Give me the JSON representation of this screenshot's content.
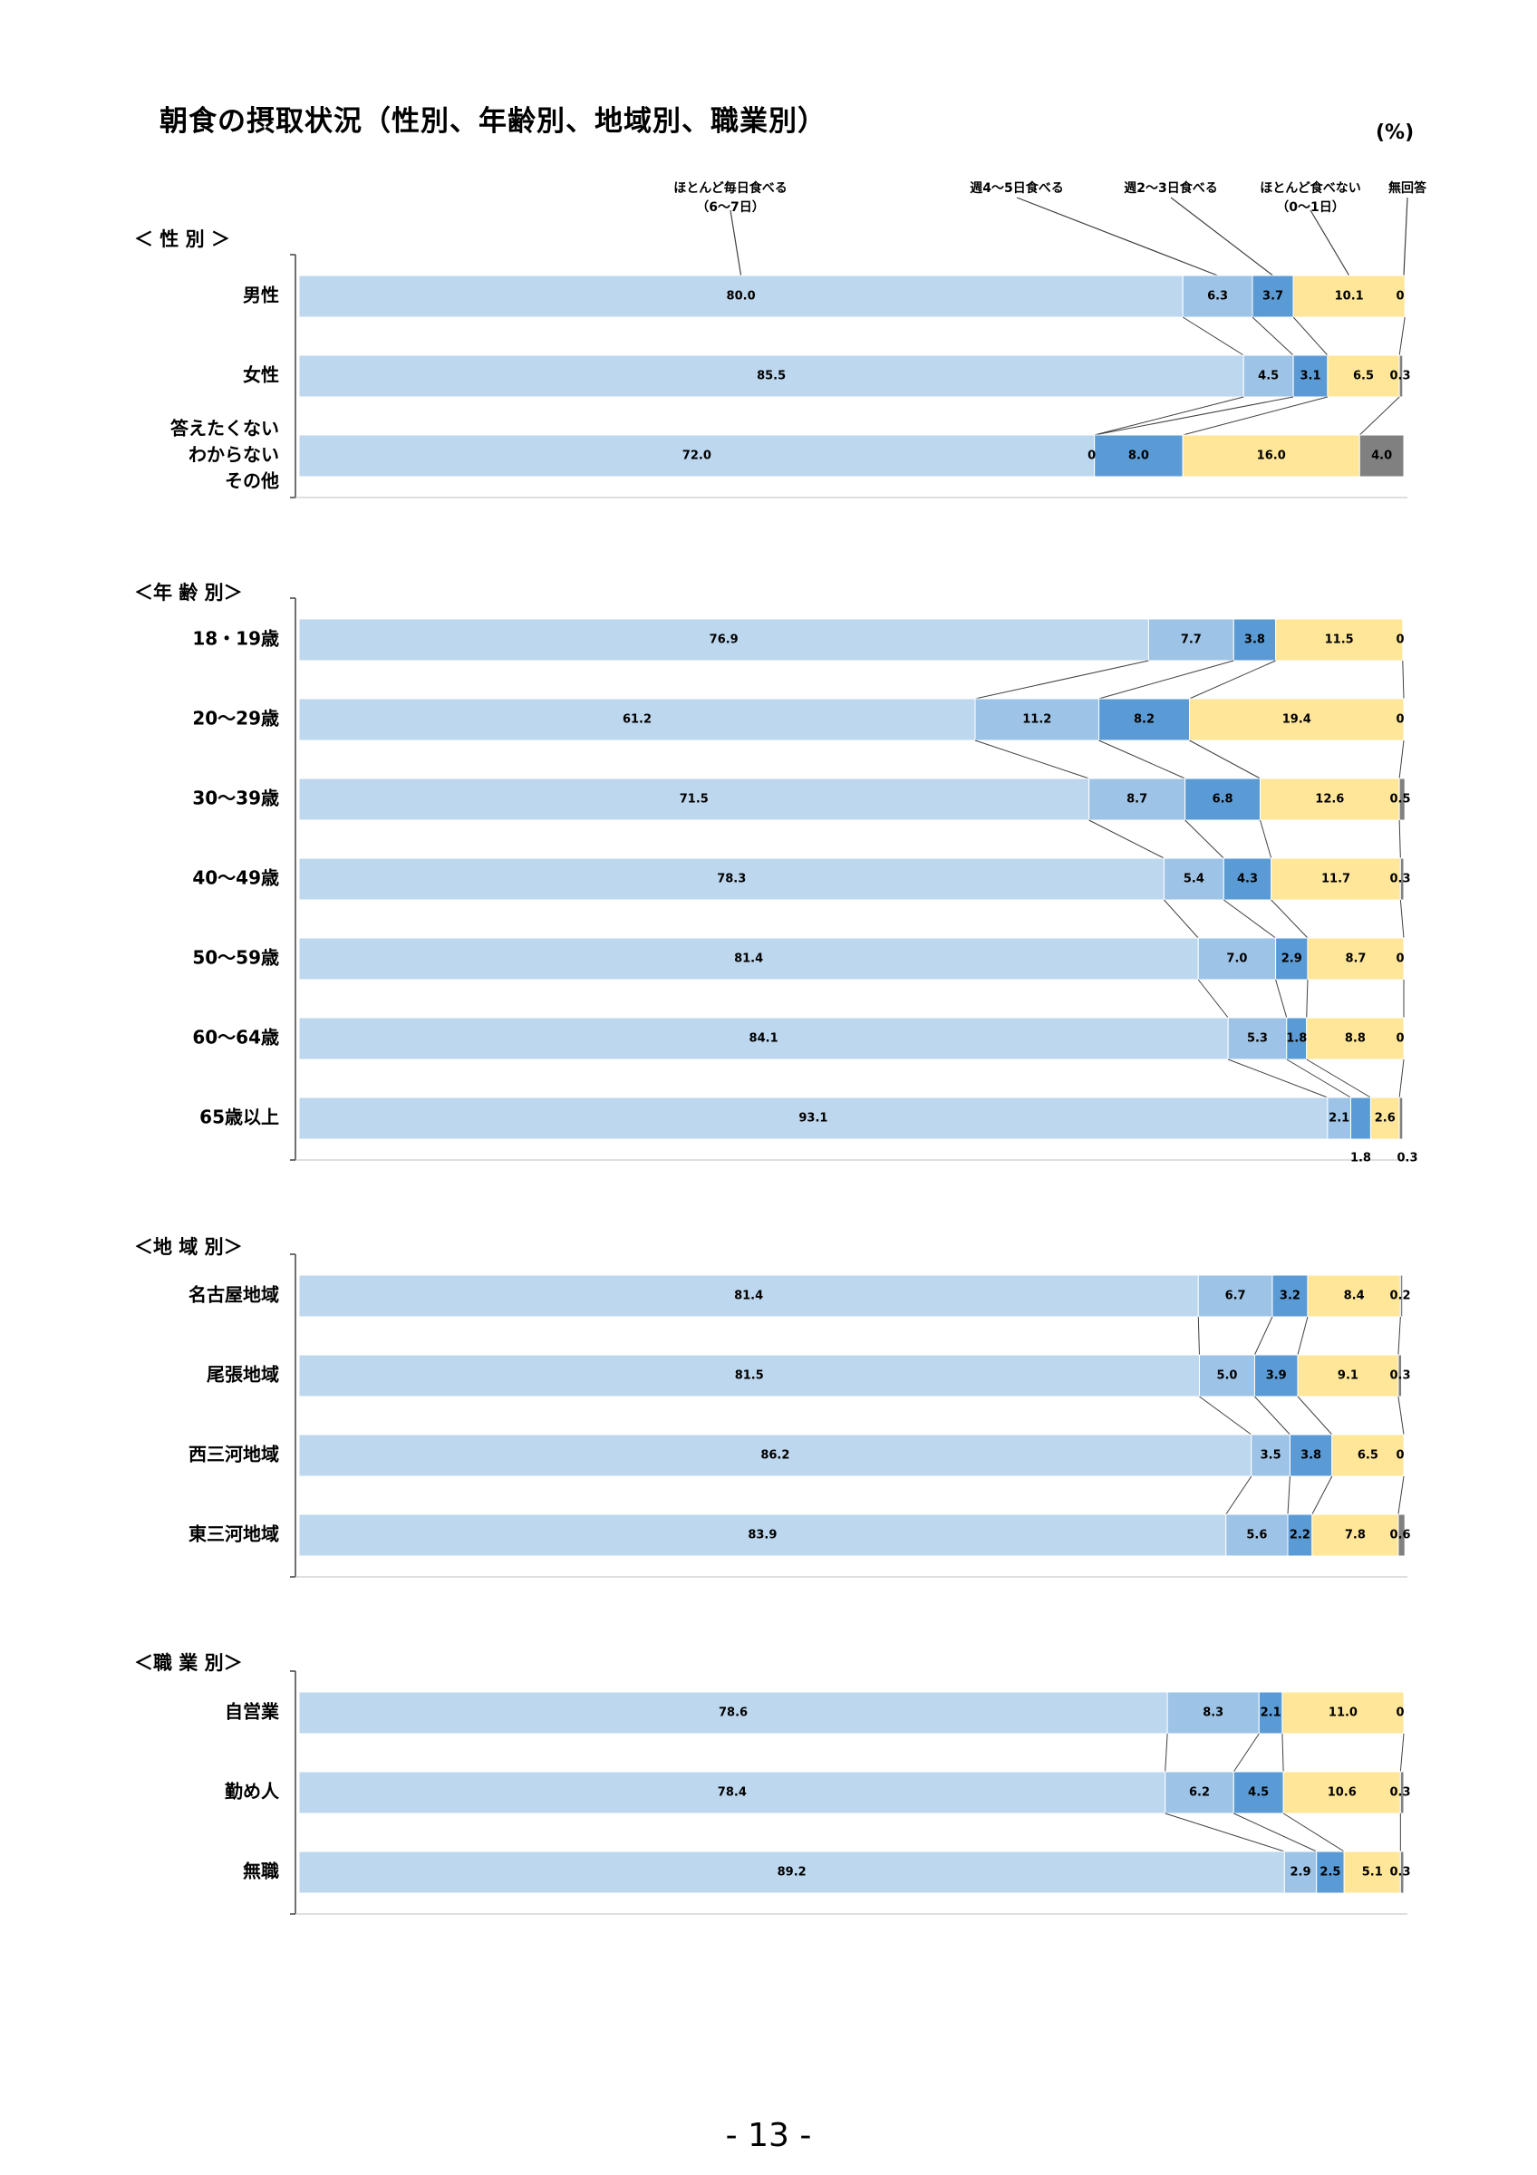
{
  "title": "朝食の摂取状況（性別、年齢別、地域別、職業別）",
  "unit": "(%)",
  "page_number": "- 13 -",
  "colors": {
    "every_day": "#BDD7EE",
    "days_4_5": "#9DC3E6",
    "days_2_3": "#5B9BD5",
    "rarely": "#FFE699",
    "no_answer": "#808080"
  },
  "chart_data": {
    "type": "bar",
    "orientation": "horizontal",
    "stacked": "100%",
    "xlim": [
      0,
      100
    ],
    "legend": [
      {
        "key": "every_day",
        "label_lines": [
          "ほとんど毎日食べる",
          "（6〜7日）"
        ]
      },
      {
        "key": "days_4_5",
        "label_lines": [
          "週4〜5日食べる"
        ]
      },
      {
        "key": "days_2_3",
        "label_lines": [
          "週2〜3日食べる"
        ]
      },
      {
        "key": "rarely",
        "label_lines": [
          "ほとんど食べない",
          "（0〜1日）"
        ]
      },
      {
        "key": "no_answer",
        "label_lines": [
          "無回答"
        ]
      }
    ],
    "groups": [
      {
        "title": "＜ 性 別 ＞",
        "rows": [
          {
            "label_lines": [
              "男性"
            ],
            "values": [
              80.0,
              6.3,
              3.7,
              10.1,
              0.0
            ],
            "labels": [
              "80.0",
              "6.3",
              "3.7",
              "10.1",
              "0"
            ]
          },
          {
            "label_lines": [
              "女性"
            ],
            "values": [
              85.5,
              4.5,
              3.1,
              6.5,
              0.3
            ],
            "labels": [
              "85.5",
              "4.5",
              "3.1",
              "6.5",
              "0.3"
            ]
          },
          {
            "label_lines": [
              "答えたくない",
              "わからない",
              "その他"
            ],
            "values": [
              72.0,
              0.0,
              8.0,
              16.0,
              4.0
            ],
            "labels": [
              "72.0",
              "0",
              "8.0",
              "16.0",
              "4.0"
            ]
          }
        ]
      },
      {
        "title": "＜年 齢 別＞",
        "rows": [
          {
            "label_lines": [
              "18・19歳"
            ],
            "values": [
              76.9,
              7.7,
              3.8,
              11.5,
              0.0
            ],
            "labels": [
              "76.9",
              "7.7",
              "3.8",
              "11.5",
              "0"
            ]
          },
          {
            "label_lines": [
              "20〜29歳"
            ],
            "values": [
              61.2,
              11.2,
              8.2,
              19.4,
              0.0
            ],
            "labels": [
              "61.2",
              "11.2",
              "8.2",
              "19.4",
              "0"
            ]
          },
          {
            "label_lines": [
              "30〜39歳"
            ],
            "values": [
              71.5,
              8.7,
              6.8,
              12.6,
              0.5
            ],
            "labels": [
              "71.5",
              "8.7",
              "6.8",
              "12.6",
              "0.5"
            ]
          },
          {
            "label_lines": [
              "40〜49歳"
            ],
            "values": [
              78.3,
              5.4,
              4.3,
              11.7,
              0.3
            ],
            "labels": [
              "78.3",
              "5.4",
              "4.3",
              "11.7",
              "0.3"
            ]
          },
          {
            "label_lines": [
              "50〜59歳"
            ],
            "values": [
              81.4,
              7.0,
              2.9,
              8.7,
              0.0
            ],
            "labels": [
              "81.4",
              "7.0",
              "2.9",
              "8.7",
              "0"
            ]
          },
          {
            "label_lines": [
              "60〜64歳"
            ],
            "values": [
              84.1,
              5.3,
              1.8,
              8.8,
              0.0
            ],
            "labels": [
              "84.1",
              "5.3",
              "1.8",
              "8.8",
              "0"
            ]
          },
          {
            "label_lines": [
              "65歳以上"
            ],
            "values": [
              93.1,
              2.1,
              1.8,
              2.6,
              0.3
            ],
            "labels": [
              "93.1",
              "2.1",
              "1.8",
              "2.6",
              "0.3"
            ],
            "outside": [
              2,
              4
            ]
          }
        ]
      },
      {
        "title": "＜地 域 別＞",
        "rows": [
          {
            "label_lines": [
              "名古屋地域"
            ],
            "values": [
              81.4,
              6.7,
              3.2,
              8.4,
              0.2
            ],
            "labels": [
              "81.4",
              "6.7",
              "3.2",
              "8.4",
              "0.2"
            ]
          },
          {
            "label_lines": [
              "尾張地域"
            ],
            "values": [
              81.5,
              5.0,
              3.9,
              9.1,
              0.3
            ],
            "labels": [
              "81.5",
              "5.0",
              "3.9",
              "9.1",
              "0.3"
            ]
          },
          {
            "label_lines": [
              "西三河地域"
            ],
            "values": [
              86.2,
              3.5,
              3.8,
              6.5,
              0.0
            ],
            "labels": [
              "86.2",
              "3.5",
              "3.8",
              "6.5",
              "0"
            ]
          },
          {
            "label_lines": [
              "東三河地域"
            ],
            "values": [
              83.9,
              5.6,
              2.2,
              7.8,
              0.6
            ],
            "labels": [
              "83.9",
              "5.6",
              "2.2",
              "7.8",
              "0.6"
            ]
          }
        ]
      },
      {
        "title": "＜職 業 別＞",
        "rows": [
          {
            "label_lines": [
              "自営業"
            ],
            "values": [
              78.6,
              8.3,
              2.1,
              11.0,
              0.0
            ],
            "labels": [
              "78.6",
              "8.3",
              "2.1",
              "11.0",
              "0"
            ]
          },
          {
            "label_lines": [
              "勤め人"
            ],
            "values": [
              78.4,
              6.2,
              4.5,
              10.6,
              0.3
            ],
            "labels": [
              "78.4",
              "6.2",
              "4.5",
              "10.6",
              "0.3"
            ]
          },
          {
            "label_lines": [
              "無職"
            ],
            "values": [
              89.2,
              2.9,
              2.5,
              5.1,
              0.3
            ],
            "labels": [
              "89.2",
              "2.9",
              "2.5",
              "5.1",
              "0.3"
            ]
          }
        ]
      }
    ]
  }
}
